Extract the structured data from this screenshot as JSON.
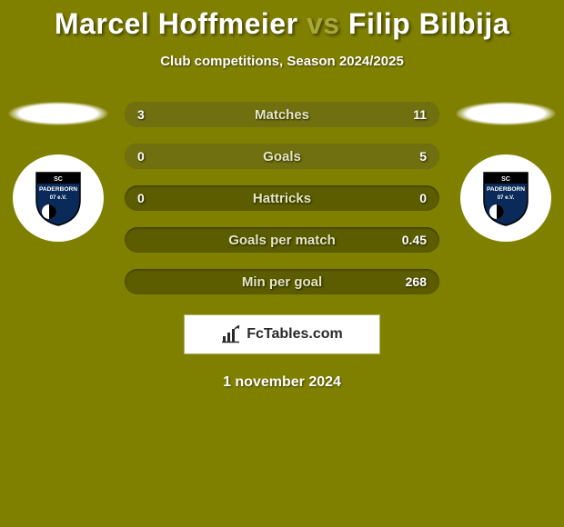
{
  "colors": {
    "background": "#808000",
    "bar_bg": "#5c5c00",
    "bar_fill": "#707010",
    "title_primary": "#ffffff",
    "title_accent": "#a8a838",
    "text": "#ffffff",
    "brand_text": "#2a2a2a",
    "badge_bg": "#ffffff"
  },
  "title": {
    "player1": "Marcel Hoffmeier",
    "vs": " vs ",
    "player2": "Filip Bilbija"
  },
  "subtitle": "Club competitions, Season 2024/2025",
  "left_club": {
    "name": "SC PADERBORN 07",
    "line1": "SC",
    "line2": "PADERBORN",
    "line3": "07 e.V."
  },
  "right_club": {
    "name": "SC PADERBORN 07",
    "line1": "SC",
    "line2": "PADERBORN",
    "line3": "07 e.V."
  },
  "bars": [
    {
      "label": "Matches",
      "left": "3",
      "right": "11",
      "left_pct": 21,
      "right_pct": 79
    },
    {
      "label": "Goals",
      "left": "0",
      "right": "5",
      "left_pct": 0,
      "right_pct": 100
    },
    {
      "label": "Hattricks",
      "left": "0",
      "right": "0",
      "left_pct": 0,
      "right_pct": 0
    },
    {
      "label": "Goals per match",
      "left": "",
      "right": "0.45",
      "left_pct": 0,
      "right_pct": 0
    },
    {
      "label": "Min per goal",
      "left": "",
      "right": "268",
      "left_pct": 0,
      "right_pct": 0
    }
  ],
  "brand": "FcTables.com",
  "date": "1 november 2024"
}
